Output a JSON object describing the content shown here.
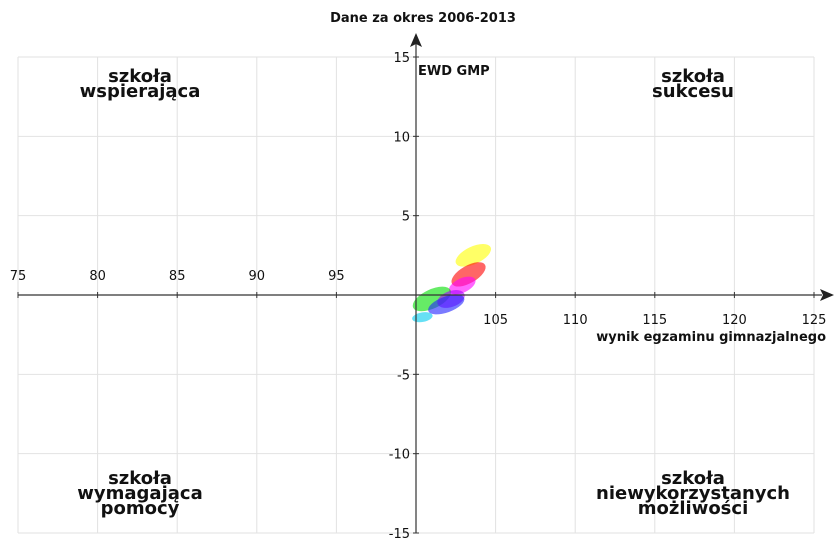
{
  "chart_data": {
    "type": "scatter",
    "title": "Dane za okres 2006-2013",
    "xlabel": "wynik egzaminu gimnazjalnego",
    "ylabel": "EWD GMP",
    "xlim": [
      75,
      125
    ],
    "ylim": [
      -15,
      15
    ],
    "x_ticks": [
      75,
      80,
      85,
      90,
      95,
      105,
      110,
      115,
      120,
      125
    ],
    "y_ticks": [
      15,
      10,
      5,
      -5,
      -10,
      -15
    ],
    "grid": true,
    "axes_cross_at": [
      100,
      0
    ],
    "quadrant_labels": {
      "top_left": [
        "szkoła",
        "wspierająca"
      ],
      "top_right": [
        "szkoła",
        "sukcesu"
      ],
      "bottom_left": [
        "szkoła",
        "wymagająca",
        "pomocy"
      ],
      "bottom_right": [
        "szkoła",
        "niewykorzystanych",
        "możliwości"
      ]
    },
    "ellipses": [
      {
        "x": 103.6,
        "y": 2.5,
        "rx": 1.2,
        "ry": 0.55,
        "angle": -25,
        "color": "#ffff00"
      },
      {
        "x": 103.3,
        "y": 1.3,
        "rx": 1.2,
        "ry": 0.55,
        "angle": -30,
        "color": "#ff0000"
      },
      {
        "x": 102.9,
        "y": 0.6,
        "rx": 0.9,
        "ry": 0.45,
        "angle": -25,
        "color": "#ff00ff"
      },
      {
        "x": 101.0,
        "y": -0.25,
        "rx": 1.3,
        "ry": 0.6,
        "angle": -25,
        "color": "#00dd00"
      },
      {
        "x": 102.2,
        "y": -0.25,
        "rx": 0.9,
        "ry": 0.5,
        "angle": -20,
        "color": "#aa00ff"
      },
      {
        "x": 101.9,
        "y": -0.6,
        "rx": 1.2,
        "ry": 0.5,
        "angle": -20,
        "color": "#2222ff"
      },
      {
        "x": 100.4,
        "y": -1.4,
        "rx": 0.65,
        "ry": 0.3,
        "angle": -10,
        "color": "#00ccee"
      }
    ]
  }
}
